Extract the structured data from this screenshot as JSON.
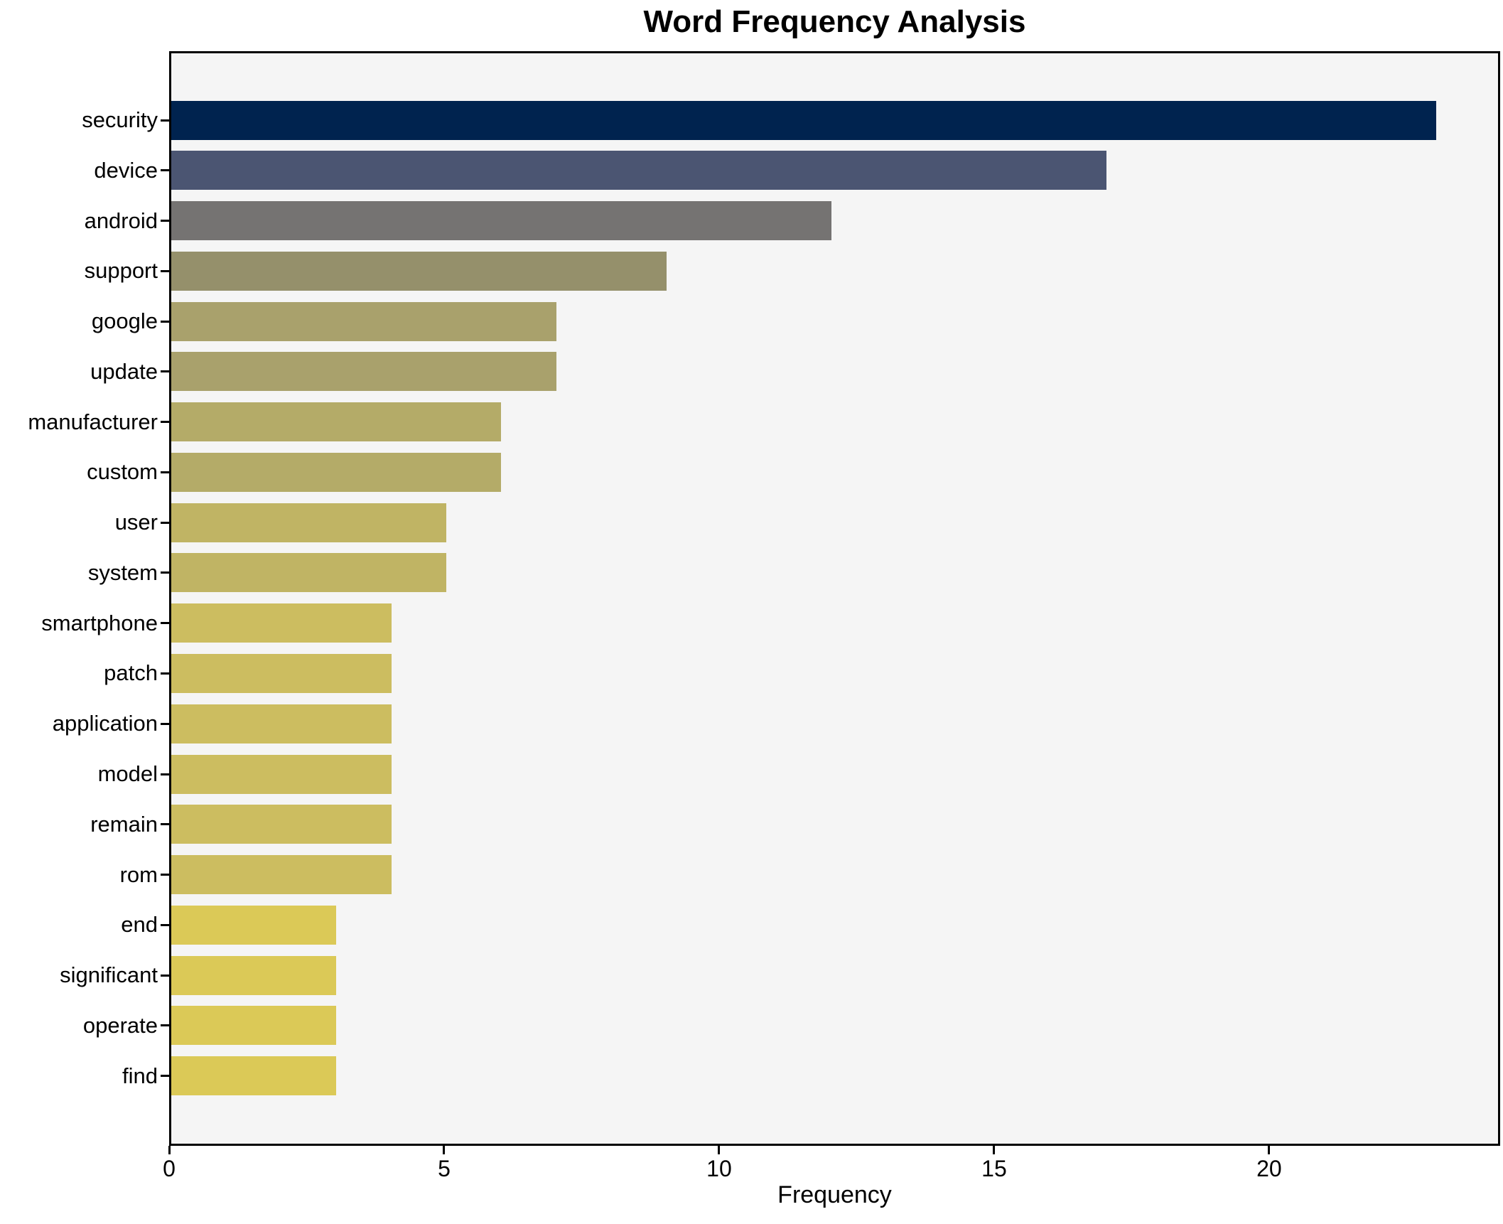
{
  "title": "Word Frequency Analysis",
  "xlabel": "Frequency",
  "colors": {
    "figure_bg": "#ffffff",
    "plot_bg": "#f5f5f5",
    "spine": "#000000",
    "text": "#000000"
  },
  "chart_data": {
    "type": "bar",
    "orientation": "horizontal",
    "title": "Word Frequency Analysis",
    "xlabel": "Frequency",
    "ylabel": "",
    "grid": false,
    "legend": null,
    "xlim": [
      0,
      24.2
    ],
    "x_ticks": [
      0,
      5,
      10,
      15,
      20
    ],
    "categories": [
      "security",
      "device",
      "android",
      "support",
      "google",
      "update",
      "manufacturer",
      "custom",
      "user",
      "system",
      "smartphone",
      "patch",
      "application",
      "model",
      "remain",
      "rom",
      "end",
      "significant",
      "operate",
      "find"
    ],
    "values": [
      23,
      17,
      12,
      9,
      7,
      7,
      6,
      6,
      5,
      5,
      4,
      4,
      4,
      4,
      4,
      4,
      3,
      3,
      3,
      3
    ],
    "bar_colors": [
      "#00234f",
      "#4b5572",
      "#757372",
      "#95906b",
      "#a9a16c",
      "#a9a16c",
      "#b4ab68",
      "#b4ab68",
      "#c0b464",
      "#c0b464",
      "#ccbd60",
      "#ccbd60",
      "#ccbd60",
      "#ccbd60",
      "#ccbd60",
      "#ccbd60",
      "#dbc957",
      "#dbc957",
      "#dbc957",
      "#dbc957"
    ]
  }
}
